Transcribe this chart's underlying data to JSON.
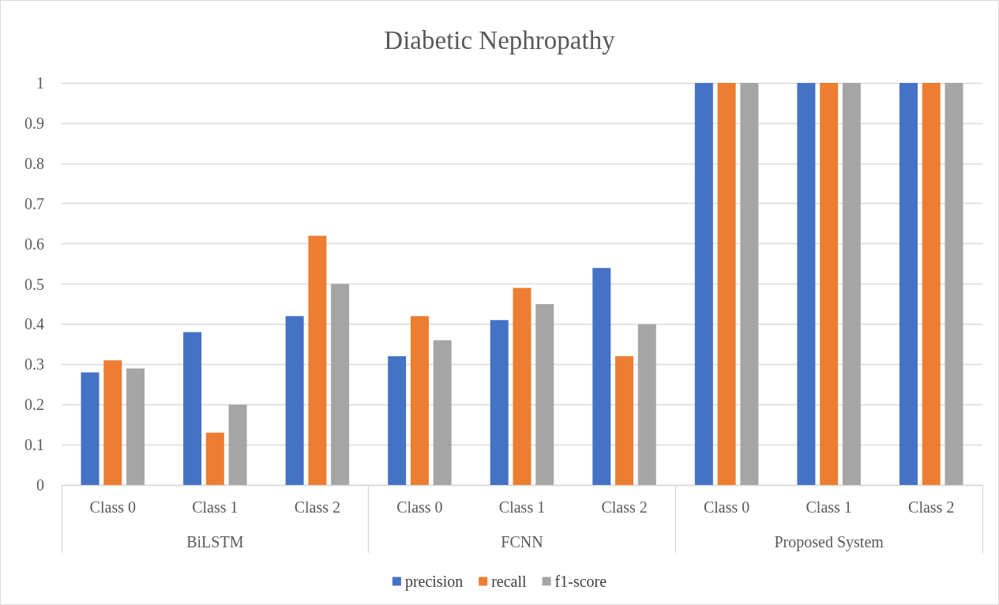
{
  "chart_data": {
    "type": "bar",
    "title": "Diabetic Nephropathy",
    "categories": [
      "Class 0",
      "Class 1",
      "Class 2",
      "Class 0",
      "Class 1",
      "Class 2",
      "Class 0",
      "Class 1",
      "Class 2"
    ],
    "annotations": [
      "BiLSTM",
      "FCNN",
      "Proposed System"
    ],
    "series": [
      {
        "name": "precision",
        "color": "#4472c4",
        "values": [
          0.28,
          0.38,
          0.42,
          0.32,
          0.41,
          0.54,
          1,
          1,
          1
        ]
      },
      {
        "name": "recall",
        "color": "#ed7d31",
        "values": [
          0.31,
          0.13,
          0.62,
          0.42,
          0.49,
          0.32,
          1,
          1,
          1
        ]
      },
      {
        "name": "f1-score",
        "color": "#a5a5a5",
        "values": [
          0.29,
          0.2,
          0.5,
          0.36,
          0.45,
          0.4,
          1,
          1,
          1
        ]
      }
    ],
    "ylim": [
      0,
      1
    ],
    "yticks": [
      0,
      0.1,
      0.2,
      0.3,
      0.4,
      0.5,
      0.6,
      0.7,
      0.8,
      0.9,
      1
    ],
    "grid": "y",
    "legend": "bottom"
  }
}
